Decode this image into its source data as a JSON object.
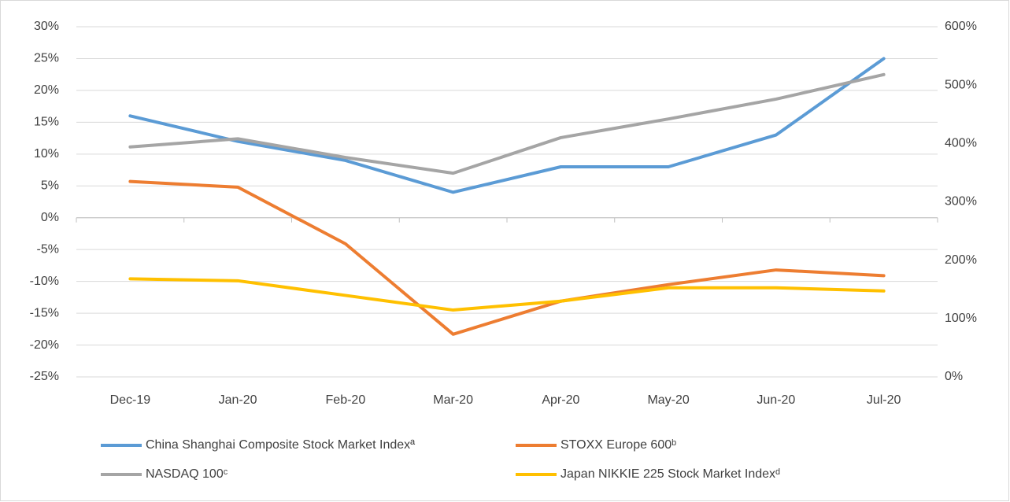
{
  "chart_data": {
    "type": "line",
    "categories": [
      "Dec-19",
      "Jan-20",
      "Feb-20",
      "Mar-20",
      "Apr-20",
      "May-20",
      "Jun-20",
      "Jul-20"
    ],
    "series": [
      {
        "name": "China Shanghai Composite Stock Market Indexª",
        "color": "#5b9bd5",
        "values": [
          16,
          12,
          9,
          4,
          8,
          8,
          13,
          25
        ]
      },
      {
        "name": "STOXX Europe 600ᵇ",
        "color": "#ed7d31",
        "values": [
          5.7,
          4.8,
          -4.1,
          -18.3,
          -13.1,
          -10.5,
          -8.2,
          -9.1
        ]
      },
      {
        "name": "NASDAQ 100ᶜ",
        "color": "#a5a5a5",
        "axis": "y2",
        "values": [
          394,
          408,
          376,
          349,
          410,
          442,
          476,
          518
        ]
      },
      {
        "name": "Japan NIKKIE 225 Stock Market Indexᵈ",
        "color": "#ffc000",
        "values": [
          -9.6,
          -9.9,
          -12.2,
          -14.5,
          -13.1,
          -11,
          -11,
          -11.5
        ]
      }
    ],
    "ylim": [
      -25,
      30
    ],
    "yticks": [
      {
        "value": -25,
        "label": "-25%"
      },
      {
        "value": -20,
        "label": "-20%"
      },
      {
        "value": -15,
        "label": "-15%"
      },
      {
        "value": -10,
        "label": "-10%"
      },
      {
        "value": -5,
        "label": "-5%"
      },
      {
        "value": 0,
        "label": "0%"
      },
      {
        "value": 5,
        "label": "5%"
      },
      {
        "value": 10,
        "label": "10%"
      },
      {
        "value": 15,
        "label": "15%"
      },
      {
        "value": 20,
        "label": "20%"
      },
      {
        "value": 25,
        "label": "25%"
      },
      {
        "value": 30,
        "label": "30%"
      }
    ],
    "y2lim": [
      0,
      600
    ],
    "y2ticks": [
      {
        "value": 0,
        "label": "0%"
      },
      {
        "value": 100,
        "label": "100%"
      },
      {
        "value": 200,
        "label": "200%"
      },
      {
        "value": 300,
        "label": "300%"
      },
      {
        "value": 400,
        "label": "400%"
      },
      {
        "value": 500,
        "label": "500%"
      },
      {
        "value": 600,
        "label": "600%"
      }
    ],
    "grid": true
  }
}
